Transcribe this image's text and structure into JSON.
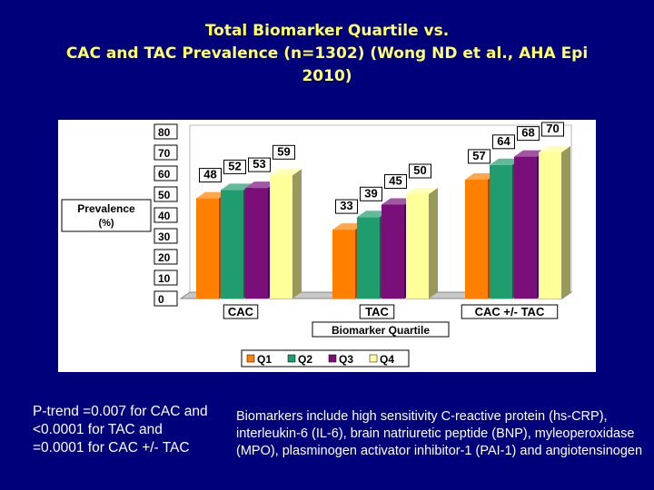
{
  "slide": {
    "title_line1": "Total Biomarker Quartile vs.",
    "title_line2": "CAC and TAC Prevalence (n=1302) (Wong ND et al., AHA Epi",
    "title_line3": "2010)",
    "note_left": "P-trend =0.007 for CAC and <0.0001 for TAC and =0.0001 for CAC +/- TAC",
    "note_right": "Biomarkers include high sensitivity C-reactive protein (hs-CRP), interleukin-6 (IL-6), brain natriuretic peptide (BNP), myleoperoxidase (MPO), plasminogen activator inhibitor-1 (PAI-1) and angiotensinogen"
  },
  "chart_data": {
    "type": "bar",
    "categories": [
      "CAC",
      "TAC",
      "CAC +/- TAC"
    ],
    "series": [
      {
        "name": "Q1",
        "values": [
          48,
          33,
          57
        ],
        "color": "#ff8000"
      },
      {
        "name": "Q2",
        "values": [
          52,
          39,
          64
        ],
        "color": "#1f9d6e"
      },
      {
        "name": "Q3",
        "values": [
          53,
          45,
          68
        ],
        "color": "#7a0f7a"
      },
      {
        "name": "Q4",
        "values": [
          59,
          50,
          70
        ],
        "color": "#ffff99"
      }
    ],
    "ylabel_line1": "Prevalence",
    "ylabel_line2": "(%)",
    "xlabel": "Biomarker Quartile",
    "yticks": [
      "0",
      "10",
      "20",
      "30",
      "40",
      "50",
      "60",
      "70",
      "80"
    ],
    "ylim": [
      0,
      80
    ],
    "legend_position": "bottom",
    "grid": false,
    "style": "3d"
  }
}
